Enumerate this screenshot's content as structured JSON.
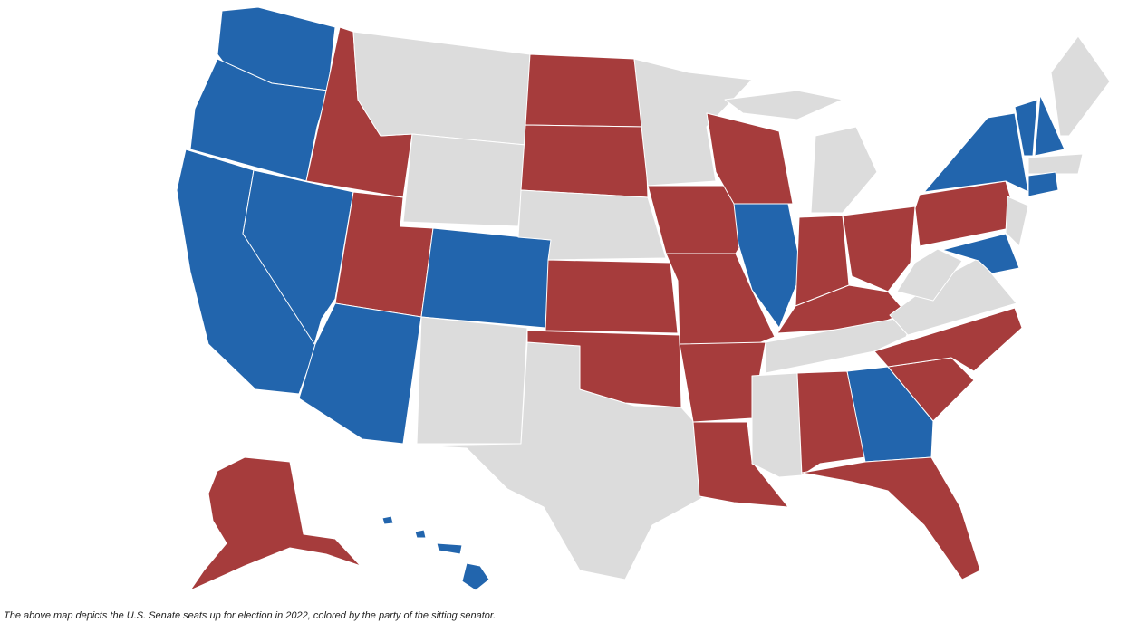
{
  "caption": "The above map depicts the U.S. Senate seats up for election in 2022, colored by the party of the sitting senator."
}
